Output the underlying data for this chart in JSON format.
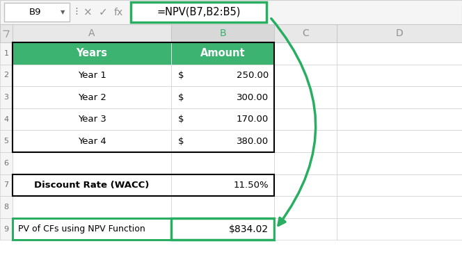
{
  "fig_width": 6.64,
  "fig_height": 3.77,
  "dpi": 100,
  "bg_color": "#ffffff",
  "formula_bar": {
    "cell_ref": "B9",
    "formula": "=NPV(B7,B2:B5)",
    "border_color": "#27ae60",
    "border_width": 2.5
  },
  "header_bg": "#3cb371",
  "header_text_color": "#ffffff",
  "col_header_text_color": "#3cb371",
  "arrow_color": "#27ae60",
  "highlight_border_color": "#27ae60",
  "rows_data": [
    {
      "row": 1,
      "col_a": "Years",
      "col_b": "Amount",
      "header": true,
      "bold_a": false,
      "highlight": false
    },
    {
      "row": 2,
      "col_a": "Year 1",
      "col_b_dollar": "$",
      "col_b_num": "250.00",
      "header": false,
      "bold_a": false,
      "highlight": false
    },
    {
      "row": 3,
      "col_a": "Year 2",
      "col_b_dollar": "$",
      "col_b_num": "300.00",
      "header": false,
      "bold_a": false,
      "highlight": false
    },
    {
      "row": 4,
      "col_a": "Year 3",
      "col_b_dollar": "$",
      "col_b_num": "170.00",
      "header": false,
      "bold_a": false,
      "highlight": false
    },
    {
      "row": 5,
      "col_a": "Year 4",
      "col_b_dollar": "$",
      "col_b_num": "380.00",
      "header": false,
      "bold_a": false,
      "highlight": false
    },
    {
      "row": 6,
      "col_a": "",
      "col_b": "",
      "header": false,
      "bold_a": false,
      "highlight": false
    },
    {
      "row": 7,
      "col_a": "Discount Rate (WACC)",
      "col_b": "11.50%",
      "header": false,
      "bold_a": true,
      "highlight": false
    },
    {
      "row": 8,
      "col_a": "",
      "col_b": "",
      "header": false,
      "bold_a": false,
      "highlight": false
    },
    {
      "row": 9,
      "col_a": "PV of CFs using NPV Function",
      "col_b": "$834.02",
      "header": false,
      "bold_a": false,
      "highlight": true
    }
  ]
}
